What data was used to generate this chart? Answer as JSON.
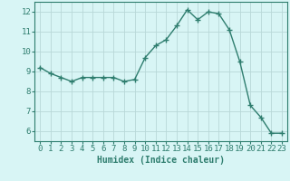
{
  "x": [
    0,
    1,
    2,
    3,
    4,
    5,
    6,
    7,
    8,
    9,
    10,
    11,
    12,
    13,
    14,
    15,
    16,
    17,
    18,
    19,
    20,
    21,
    22,
    23
  ],
  "y": [
    9.2,
    8.9,
    8.7,
    8.5,
    8.7,
    8.7,
    8.7,
    8.7,
    8.5,
    8.6,
    9.7,
    10.3,
    10.6,
    11.3,
    12.1,
    11.6,
    12.0,
    11.9,
    11.1,
    9.5,
    7.3,
    6.7,
    5.9,
    5.9
  ],
  "line_color": "#2e7d6e",
  "marker": "+",
  "marker_size": 4,
  "background_color": "#d8f5f5",
  "grid_color": "#b8d8d8",
  "xlabel": "Humidex (Indice chaleur)",
  "xlabel_fontsize": 7,
  "tick_fontsize": 6.5,
  "ylim": [
    5.5,
    12.5
  ],
  "xlim": [
    -0.5,
    23.5
  ],
  "yticks": [
    6,
    7,
    8,
    9,
    10,
    11,
    12
  ],
  "xticks": [
    0,
    1,
    2,
    3,
    4,
    5,
    6,
    7,
    8,
    9,
    10,
    11,
    12,
    13,
    14,
    15,
    16,
    17,
    18,
    19,
    20,
    21,
    22,
    23
  ]
}
